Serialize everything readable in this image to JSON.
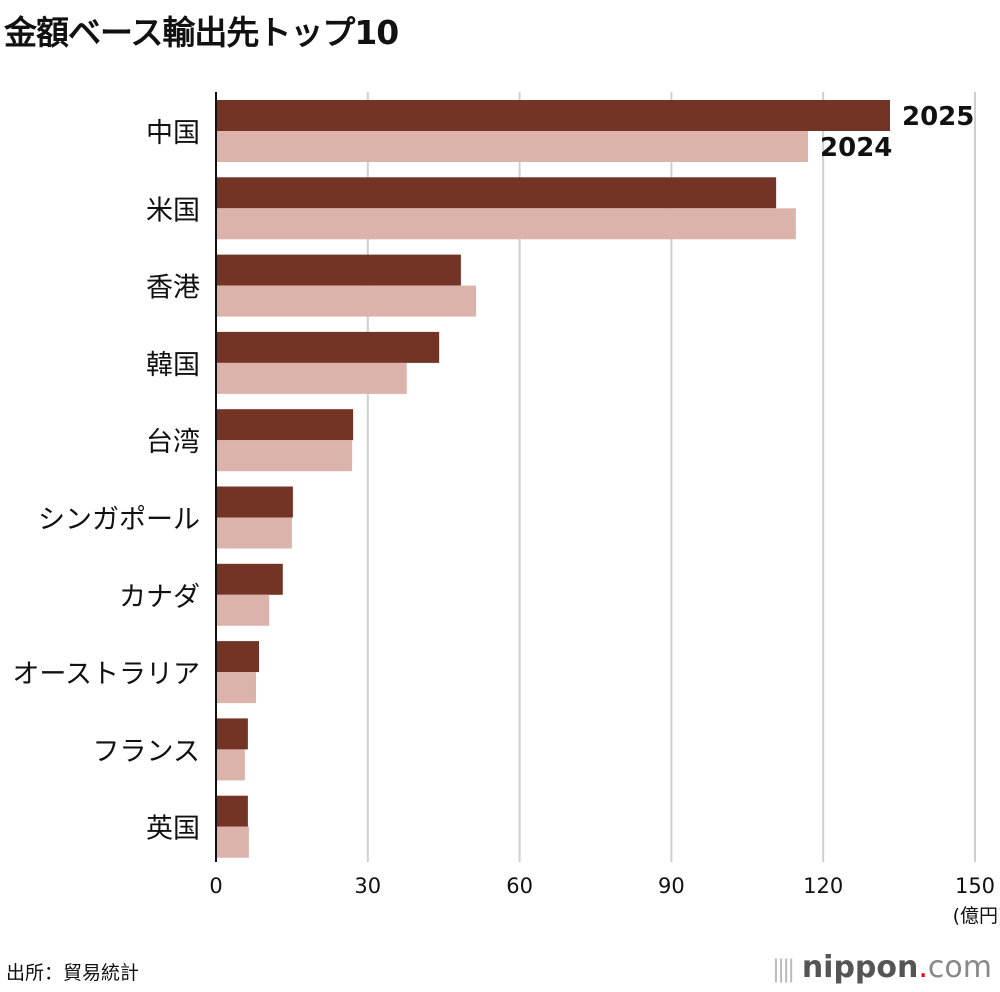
{
  "chart_data": {
    "type": "bar",
    "orientation": "horizontal",
    "title": "金額ベース輸出先トップ10",
    "categories": [
      "中国",
      "米国",
      "香港",
      "韓国",
      "台湾",
      "シンガポール",
      "カナダ",
      "オーストラリア",
      "フランス",
      "英国"
    ],
    "series": [
      {
        "name": "2025",
        "color": "#733426",
        "values": [
          133.2,
          110.7,
          48.4,
          44.1,
          27.1,
          15.2,
          13.2,
          8.5,
          6.3,
          6.3
        ]
      },
      {
        "name": "2024",
        "color": "#dbb3aa",
        "values": [
          117.0,
          114.6,
          51.4,
          37.7,
          26.9,
          15.0,
          10.5,
          7.9,
          5.7,
          6.5
        ]
      }
    ],
    "xlim": [
      0,
      150
    ],
    "xticks": [
      "0",
      "30",
      "60",
      "90",
      "120",
      "150"
    ],
    "xunit": "(億円)",
    "grid": true,
    "legend": "inline-labels"
  },
  "source": "出所：貿易統計",
  "logo": {
    "brand": "nippon",
    "dot": ".",
    "tld": "com"
  }
}
